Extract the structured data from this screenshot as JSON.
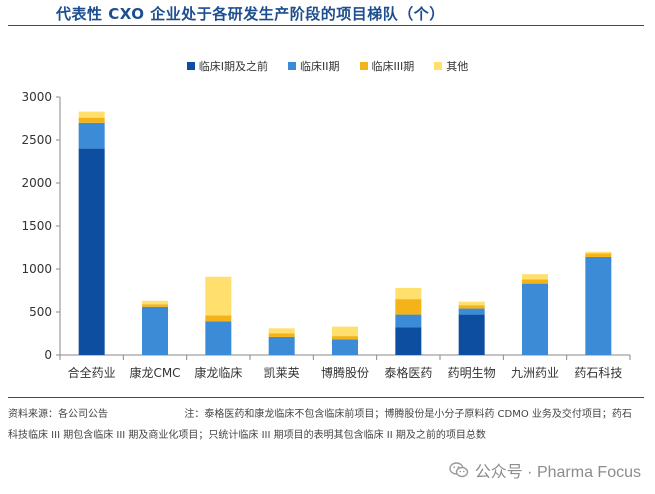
{
  "title": "代表性 CXO 企业处于各研发生产阶段的项目梯队（个）",
  "legend": [
    {
      "label": "临床I期及之前",
      "color": "#0e4ea0"
    },
    {
      "label": "临床II期",
      "color": "#3b8bd6"
    },
    {
      "label": "临床III期",
      "color": "#f4b319"
    },
    {
      "label": "其他",
      "color": "#ffdf6e"
    }
  ],
  "chart_data": {
    "type": "bar",
    "stacked": true,
    "categories": [
      "合全药业",
      "康龙CMC",
      "康龙临床",
      "凯莱英",
      "博腾股份",
      "泰格医药",
      "药明生物",
      "九洲药业",
      "药石科技"
    ],
    "series": [
      {
        "name": "临床I期及之前",
        "color": "#0e4ea0",
        "values": [
          2400,
          0,
          0,
          0,
          0,
          320,
          470,
          0,
          0
        ]
      },
      {
        "name": "临床II期",
        "color": "#3b8bd6",
        "values": [
          300,
          560,
          390,
          210,
          180,
          150,
          70,
          830,
          1140
        ]
      },
      {
        "name": "临床III期",
        "color": "#f4b319",
        "values": [
          60,
          30,
          70,
          40,
          40,
          180,
          40,
          50,
          40
        ]
      },
      {
        "name": "其他",
        "color": "#ffdf6e",
        "values": [
          70,
          40,
          450,
          60,
          110,
          130,
          40,
          60,
          20
        ]
      }
    ],
    "yticks": [
      0,
      500,
      1000,
      1500,
      2000,
      2500,
      3000
    ],
    "ylim": [
      0,
      3000
    ]
  },
  "footnote": {
    "source": "资料来源：各公司公告",
    "note": "注：泰格医药和康龙临床不包含临床前项目；博腾股份是小分子原料药 CDMO 业务及交付项目；药石科技临床 III 期包含临床 III 期及商业化项目；只统计临床 III 期项目的表明其包含临床 II 期及之前的项目总数"
  },
  "watermark": "公众号 · Pharma Focus"
}
